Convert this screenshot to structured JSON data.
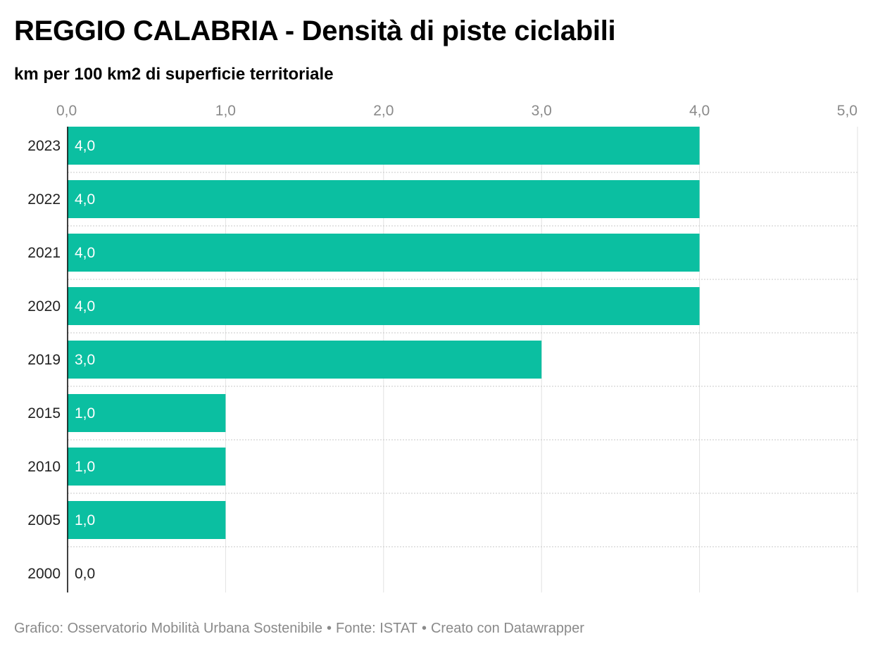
{
  "chart_data": {
    "type": "bar",
    "orientation": "horizontal",
    "title": "REGGIO CALABRIA - Densità di piste ciclabili",
    "subtitle": "km per 100 km2 di superficie territoriale",
    "categories": [
      "2023",
      "2022",
      "2021",
      "2020",
      "2019",
      "2015",
      "2010",
      "2005",
      "2000"
    ],
    "values": [
      4.0,
      4.0,
      4.0,
      4.0,
      3.0,
      1.0,
      1.0,
      1.0,
      0.0
    ],
    "value_labels": [
      "4,0",
      "4,0",
      "4,0",
      "4,0",
      "3,0",
      "1,0",
      "1,0",
      "1,0",
      "0,0"
    ],
    "xlim": [
      0,
      5
    ],
    "x_ticks": [
      0,
      1,
      2,
      3,
      4,
      5
    ],
    "x_tick_labels": [
      "0,0",
      "1,0",
      "2,0",
      "3,0",
      "4,0",
      "5,0"
    ],
    "xlabel": "",
    "ylabel": "",
    "grid": true,
    "bar_color": "#0bbfa1",
    "legend": "none"
  },
  "footer": {
    "chart_credit": "Grafico: Osservatorio Mobilità Urbana Sostenibile",
    "source": "Fonte: ISTAT",
    "made_with": "Creato con Datawrapper",
    "separator": "•"
  }
}
